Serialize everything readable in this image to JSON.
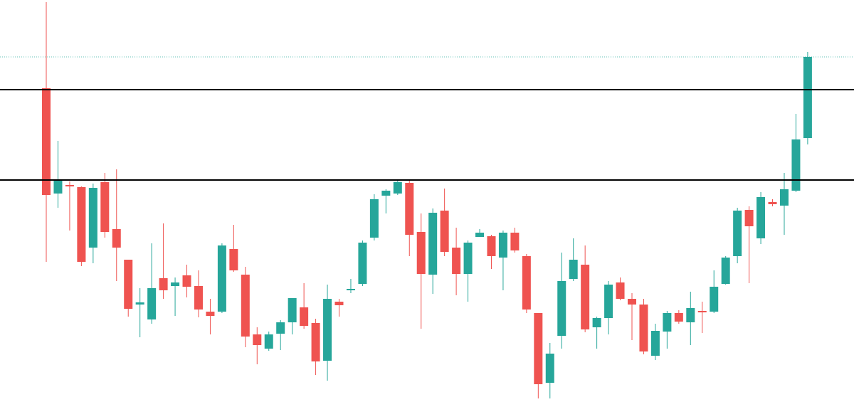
{
  "chart_data": {
    "type": "candlestick",
    "up_color": "#26a69a",
    "down_color": "#ef5350",
    "level_color": "#000000",
    "ylim": [
      0,
      565
    ],
    "levels": [
      439,
      312
    ],
    "open": [
      441,
      293,
      305,
      302,
      217,
      309,
      243,
      200,
      137,
      116,
      174,
      163,
      178,
      163,
      127,
      127,
      215,
      179,
      95,
      75,
      96,
      112,
      133,
      111,
      58,
      141,
      158,
      166,
      231,
      290,
      293,
      308,
      239,
      179,
      269,
      217,
      180,
      232,
      233,
      203,
      238,
      205,
      125,
      27,
      93,
      173,
      193,
      105,
      118,
      168,
      145,
      137,
      65,
      99,
      125,
      112,
      128,
      127,
      166,
      205,
      270,
      230,
      281,
      276,
      297,
      371
    ],
    "high": [
      562,
      367,
      310,
      303,
      307,
      322,
      327,
      200,
      160,
      223,
      251,
      175,
      193,
      185,
      145,
      223,
      249,
      190,
      105,
      99,
      115,
      146,
      167,
      117,
      165,
      145,
      173,
      227,
      292,
      299,
      313,
      311,
      265,
      272,
      300,
      245,
      227,
      243,
      235,
      241,
      245,
      208,
      125,
      83,
      210,
      230,
      220,
      120,
      170,
      175,
      153,
      145,
      110,
      128,
      129,
      155,
      141,
      185,
      205,
      273,
      275,
      295,
      285,
      322,
      405,
      492
    ],
    "low": [
      197,
      273,
      241,
      191,
      195,
      231,
      170,
      120,
      91,
      110,
      145,
      121,
      147,
      119,
      95,
      125,
      183,
      77,
      53,
      72,
      73,
      95,
      103,
      38,
      30,
      120,
      153,
      163,
      227,
      265,
      291,
      205,
      103,
      152,
      205,
      150,
      141,
      232,
      187,
      157,
      210,
      125,
      5,
      5,
      75,
      170,
      98,
      75,
      95,
      143,
      87,
      67,
      59,
      75,
      110,
      80,
      97,
      125,
      165,
      195,
      167,
      222,
      275,
      235,
      295,
      362
    ],
    "close": [
      291,
      312,
      303,
      197,
      301,
      239,
      217,
      131,
      140,
      160,
      157,
      168,
      162,
      130,
      121,
      220,
      185,
      92,
      80,
      95,
      112,
      146,
      107,
      57,
      145,
      136,
      159,
      224,
      285,
      297,
      309,
      235,
      180,
      266,
      211,
      180,
      224,
      238,
      205,
      238,
      213,
      130,
      25,
      68,
      170,
      200,
      102,
      118,
      165,
      145,
      137,
      71,
      100,
      125,
      113,
      132,
      126,
      162,
      203,
      269,
      247,
      288,
      278,
      299,
      369,
      485
    ]
  }
}
